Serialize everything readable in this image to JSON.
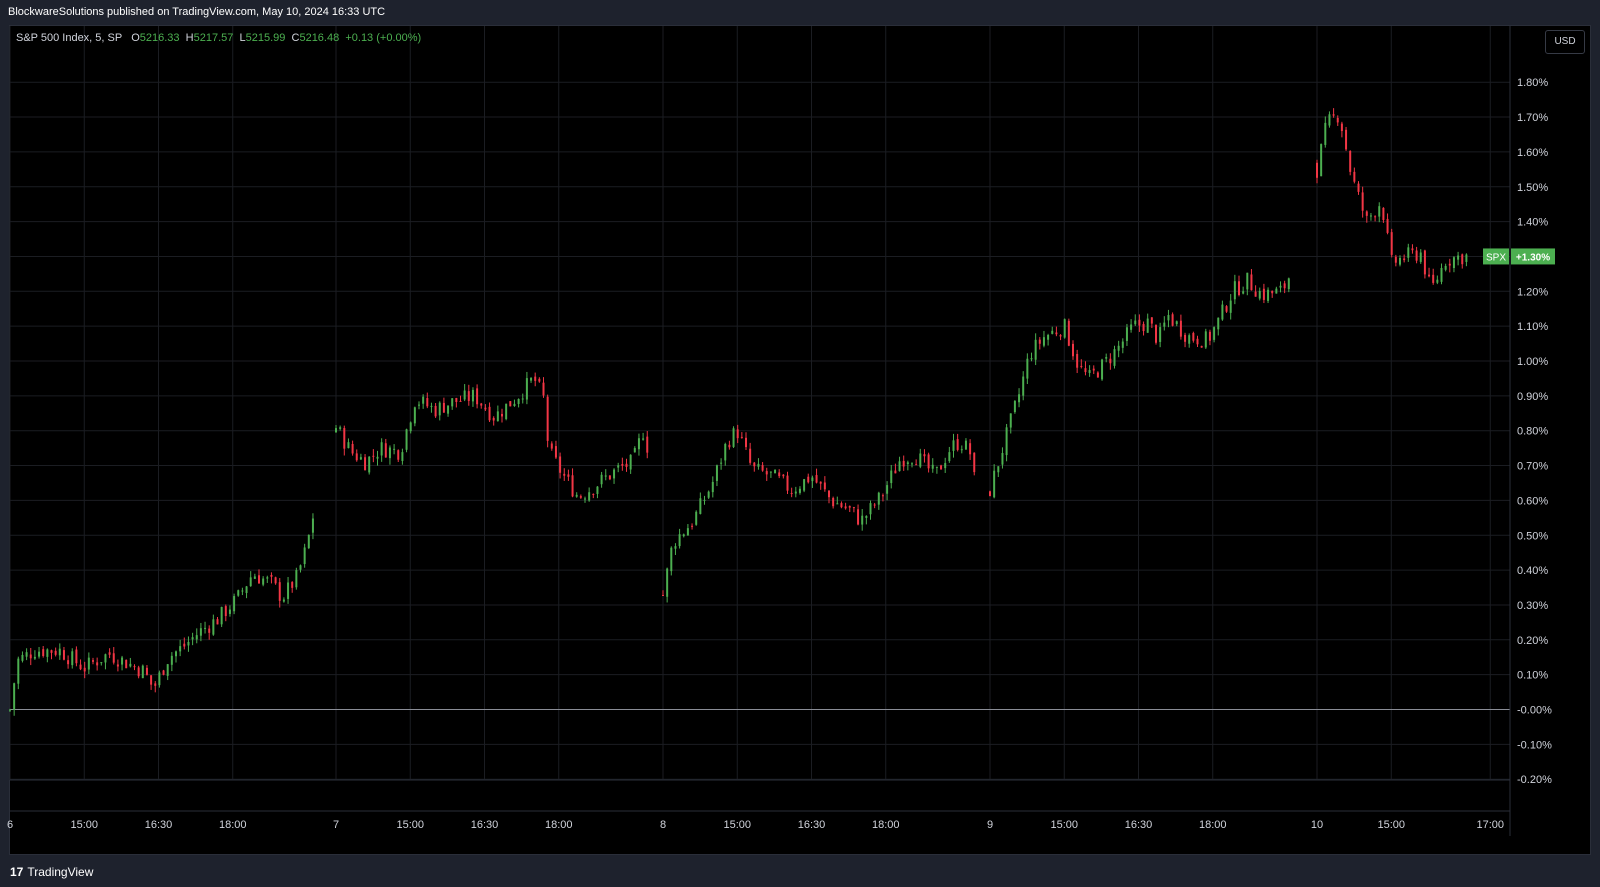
{
  "header": {
    "publisher_line": "BlockwareSolutions published on TradingView.com, May 10, 2024 16:33 UTC"
  },
  "legend": {
    "symbol": "S&P 500 Index, 5, SP",
    "open_label": "O",
    "open": "5216.33",
    "high_label": "H",
    "high": "5217.57",
    "low_label": "L",
    "low": "5215.99",
    "close_label": "C",
    "close": "5216.48",
    "change": "+0.13 (+0.00%)"
  },
  "currency": "USD",
  "price_tag": {
    "symbol": "SPX",
    "value": "+1.30%"
  },
  "footer": {
    "logo_mark": "17",
    "brand": "TradingView"
  },
  "colors": {
    "up": "#4caf50",
    "down": "#f23645",
    "background": "#000000",
    "grid": "#1b1d22",
    "text": "#d1d4dc"
  },
  "chart_data": {
    "type": "candlestick",
    "y_axis": {
      "scale": "percent",
      "ylim": [
        -0.2,
        1.85
      ],
      "ticks": [
        "1.80%",
        "1.70%",
        "1.60%",
        "1.50%",
        "1.40%",
        "1.30%",
        "1.20%",
        "1.10%",
        "1.00%",
        "0.90%",
        "0.80%",
        "0.70%",
        "0.60%",
        "0.50%",
        "0.40%",
        "0.30%",
        "0.20%",
        "0.10%",
        "-0.00%",
        "-0.10%",
        "-0.20%"
      ],
      "tick_values": [
        1.8,
        1.7,
        1.6,
        1.5,
        1.4,
        1.3,
        1.2,
        1.1,
        1.0,
        0.9,
        0.8,
        0.7,
        0.6,
        0.5,
        0.4,
        0.3,
        0.2,
        0.1,
        0.0,
        -0.1,
        -0.2
      ]
    },
    "x_axis": {
      "ticks": [
        {
          "label": "6",
          "day": 0,
          "t": 0
        },
        {
          "label": "15:00",
          "day": 0,
          "t": 1.5
        },
        {
          "label": "16:30",
          "day": 0,
          "t": 3
        },
        {
          "label": "18:00",
          "day": 0,
          "t": 4.5
        },
        {
          "label": "7",
          "day": 1,
          "t": 0
        },
        {
          "label": "15:00",
          "day": 1,
          "t": 1.5
        },
        {
          "label": "16:30",
          "day": 1,
          "t": 3
        },
        {
          "label": "18:00",
          "day": 1,
          "t": 4.5
        },
        {
          "label": "8",
          "day": 2,
          "t": 0
        },
        {
          "label": "15:00",
          "day": 2,
          "t": 1.5
        },
        {
          "label": "16:30",
          "day": 2,
          "t": 3
        },
        {
          "label": "18:00",
          "day": 2,
          "t": 4.5
        },
        {
          "label": "9",
          "day": 3,
          "t": 0
        },
        {
          "label": "15:00",
          "day": 3,
          "t": 1.5
        },
        {
          "label": "16:30",
          "day": 3,
          "t": 3
        },
        {
          "label": "18:00",
          "day": 3,
          "t": 4.5
        },
        {
          "label": "10",
          "day": 4,
          "t": 0
        },
        {
          "label": "15:00",
          "day": 4,
          "t": 1.5
        },
        {
          "label": "17:00",
          "day": 4,
          "t": 3.5
        }
      ]
    },
    "baseline": 0.0,
    "last_value": 1.3,
    "path_keypoints": [
      [
        0,
        0.0,
        0.0
      ],
      [
        0,
        0.15,
        0.14
      ],
      [
        0,
        0.5,
        0.17
      ],
      [
        0,
        1.0,
        0.17
      ],
      [
        0,
        1.5,
        0.12
      ],
      [
        0,
        2.0,
        0.16
      ],
      [
        0,
        2.7,
        0.11
      ],
      [
        0,
        2.9,
        0.06
      ],
      [
        0,
        3.2,
        0.15
      ],
      [
        0,
        3.5,
        0.18
      ],
      [
        0,
        3.8,
        0.22
      ],
      [
        0,
        4.2,
        0.26
      ],
      [
        0,
        4.6,
        0.32
      ],
      [
        0,
        4.9,
        0.39
      ],
      [
        0,
        5.3,
        0.36
      ],
      [
        0,
        5.5,
        0.32
      ],
      [
        0,
        5.8,
        0.38
      ],
      [
        0,
        6.0,
        0.47
      ],
      [
        0,
        6.2,
        0.61
      ],
      [
        1,
        0.0,
        0.81
      ],
      [
        1,
        0.3,
        0.74
      ],
      [
        1,
        0.6,
        0.71
      ],
      [
        1,
        0.9,
        0.75
      ],
      [
        1,
        1.3,
        0.74
      ],
      [
        1,
        1.6,
        0.89
      ],
      [
        1,
        2.0,
        0.86
      ],
      [
        1,
        2.3,
        0.88
      ],
      [
        1,
        2.8,
        0.9
      ],
      [
        1,
        3.2,
        0.84
      ],
      [
        1,
        3.6,
        0.89
      ],
      [
        1,
        4.0,
        0.95
      ],
      [
        1,
        4.2,
        0.89
      ],
      [
        1,
        4.3,
        0.74
      ],
      [
        1,
        4.6,
        0.67
      ],
      [
        1,
        4.9,
        0.61
      ],
      [
        1,
        5.3,
        0.65
      ],
      [
        1,
        5.7,
        0.69
      ],
      [
        1,
        6.0,
        0.71
      ],
      [
        1,
        6.2,
        0.8
      ],
      [
        1,
        6.3,
        0.75
      ],
      [
        2,
        0.0,
        0.33
      ],
      [
        2,
        0.2,
        0.48
      ],
      [
        2,
        0.6,
        0.54
      ],
      [
        2,
        1.0,
        0.65
      ],
      [
        2,
        1.3,
        0.77
      ],
      [
        2,
        1.5,
        0.8
      ],
      [
        2,
        1.8,
        0.69
      ],
      [
        2,
        2.2,
        0.67
      ],
      [
        2,
        2.6,
        0.63
      ],
      [
        2,
        3.0,
        0.67
      ],
      [
        2,
        3.4,
        0.6
      ],
      [
        2,
        3.8,
        0.57
      ],
      [
        2,
        4.0,
        0.54
      ],
      [
        2,
        4.4,
        0.61
      ],
      [
        2,
        4.8,
        0.72
      ],
      [
        2,
        5.1,
        0.73
      ],
      [
        2,
        5.5,
        0.67
      ],
      [
        2,
        5.8,
        0.75
      ],
      [
        2,
        6.0,
        0.77
      ],
      [
        2,
        6.2,
        0.74
      ],
      [
        2,
        6.3,
        0.65
      ],
      [
        3,
        0.0,
        0.63
      ],
      [
        3,
        0.3,
        0.77
      ],
      [
        3,
        0.6,
        0.91
      ],
      [
        3,
        0.8,
        1.02
      ],
      [
        3,
        1.1,
        1.07
      ],
      [
        3,
        1.5,
        1.1
      ],
      [
        3,
        1.8,
        0.98
      ],
      [
        3,
        2.0,
        0.95
      ],
      [
        3,
        2.3,
        0.99
      ],
      [
        3,
        2.6,
        1.04
      ],
      [
        3,
        2.9,
        1.1
      ],
      [
        3,
        3.2,
        1.11
      ],
      [
        3,
        3.4,
        1.06
      ],
      [
        3,
        3.6,
        1.13
      ],
      [
        3,
        4.0,
        1.07
      ],
      [
        3,
        4.4,
        1.06
      ],
      [
        3,
        4.6,
        1.11
      ],
      [
        3,
        4.9,
        1.2
      ],
      [
        3,
        5.2,
        1.23
      ],
      [
        3,
        5.5,
        1.19
      ],
      [
        3,
        5.9,
        1.2
      ],
      [
        3,
        6.1,
        1.26
      ],
      [
        4,
        0.0,
        1.55
      ],
      [
        4,
        0.2,
        1.68
      ],
      [
        4,
        0.45,
        1.71
      ],
      [
        4,
        0.7,
        1.53
      ],
      [
        4,
        1.0,
        1.4
      ],
      [
        4,
        1.3,
        1.46
      ],
      [
        4,
        1.5,
        1.28
      ],
      [
        4,
        1.8,
        1.3
      ],
      [
        4,
        2.1,
        1.31
      ],
      [
        4,
        2.3,
        1.2
      ],
      [
        4,
        2.6,
        1.29
      ],
      [
        4,
        2.9,
        1.3
      ],
      [
        4,
        3.05,
        1.3
      ]
    ]
  }
}
